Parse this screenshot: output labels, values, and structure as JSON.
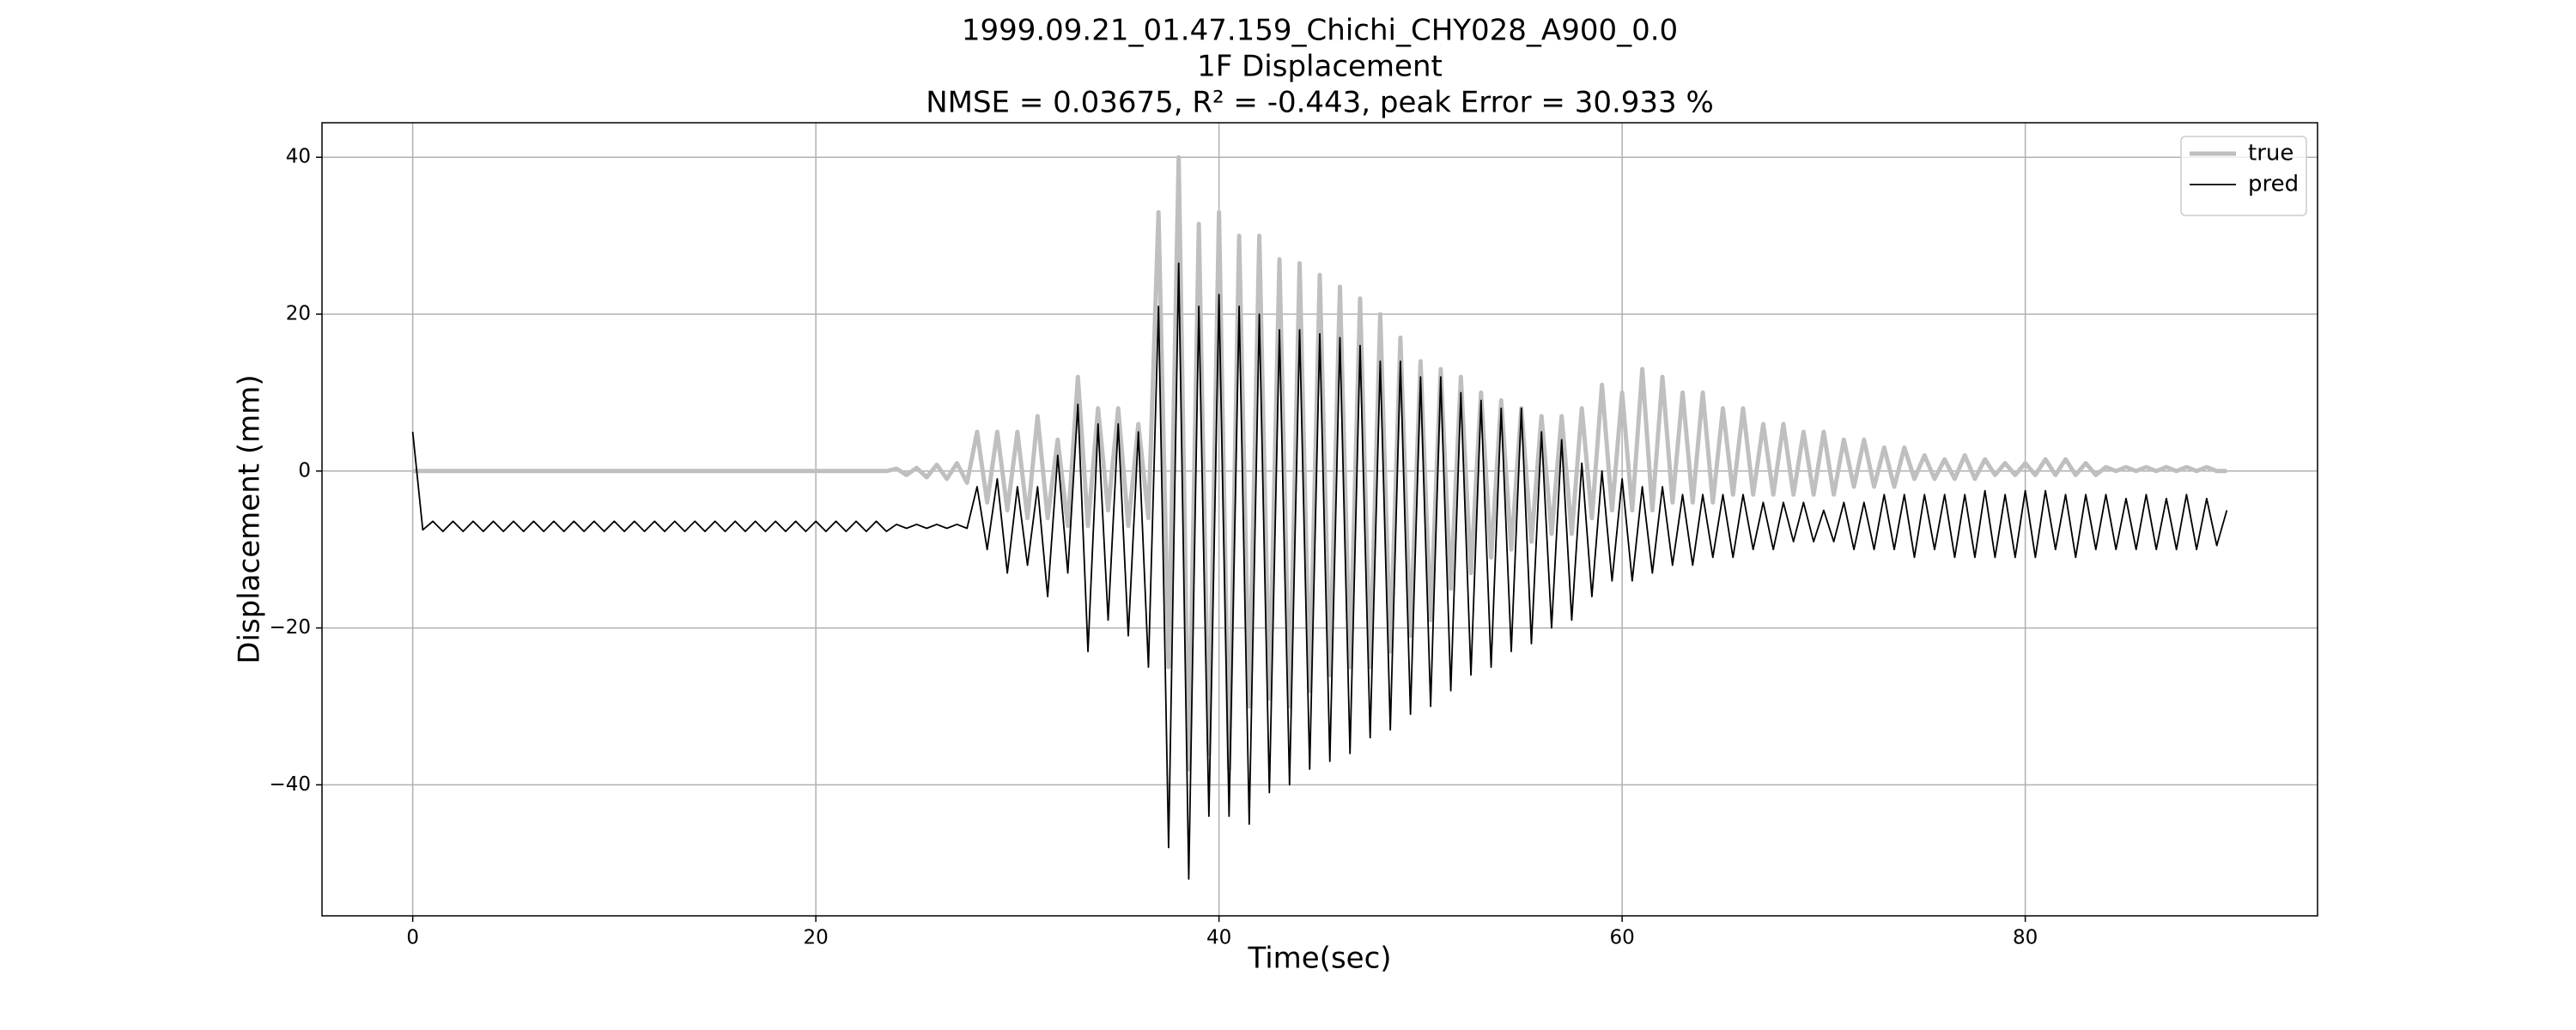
{
  "chart_data": {
    "type": "line",
    "title": [
      "1999.09.21_01.47.159_Chichi_CHY028_A900_0.0",
      "1F Displacement",
      "NMSE = 0.03675, R² = -0.443, peak Error = 30.933 %"
    ],
    "xlabel": "Time(sec)",
    "ylabel": "Displacement (mm)",
    "xlim": [
      -4.5,
      94.5
    ],
    "ylim": [
      -56.7,
      44.4
    ],
    "xticks": [
      0,
      20,
      40,
      60,
      80
    ],
    "yticks": [
      {
        "value": -40,
        "label": "−40"
      },
      {
        "value": -20,
        "label": "−20"
      },
      0,
      20,
      40
    ],
    "grid": true,
    "legend": "upper right",
    "x": [
      0,
      0.5,
      1,
      1.5,
      2,
      2.5,
      3,
      3.5,
      4,
      4.5,
      5,
      5.5,
      6,
      6.5,
      7,
      7.5,
      8,
      8.5,
      9,
      9.5,
      10,
      10.5,
      11,
      11.5,
      12,
      12.5,
      13,
      13.5,
      14,
      14.5,
      15,
      15.5,
      16,
      16.5,
      17,
      17.5,
      18,
      18.5,
      19,
      19.5,
      20,
      20.5,
      21,
      21.5,
      22,
      22.5,
      23,
      23.5,
      24,
      24.5,
      25,
      25.5,
      26,
      26.5,
      27,
      27.5,
      28,
      28.5,
      29,
      29.5,
      30,
      30.5,
      31,
      31.5,
      32,
      32.5,
      33,
      33.5,
      34,
      34.5,
      35,
      35.5,
      36,
      36.5,
      37,
      37.5,
      38,
      38.5,
      39,
      39.5,
      40,
      40.5,
      41,
      41.5,
      42,
      42.5,
      43,
      43.5,
      44,
      44.5,
      45,
      45.5,
      46,
      46.5,
      47,
      47.5,
      48,
      48.5,
      49,
      49.5,
      50,
      50.5,
      51,
      51.5,
      52,
      52.5,
      53,
      53.5,
      54,
      54.5,
      55,
      55.5,
      56,
      56.5,
      57,
      57.5,
      58,
      58.5,
      59,
      59.5,
      60,
      60.5,
      61,
      61.5,
      62,
      62.5,
      63,
      63.5,
      64,
      64.5,
      65,
      65.5,
      66,
      66.5,
      67,
      67.5,
      68,
      68.5,
      69,
      69.5,
      70,
      70.5,
      71,
      71.5,
      72,
      72.5,
      73,
      73.5,
      74,
      74.5,
      75,
      75.5,
      76,
      76.5,
      77,
      77.5,
      78,
      78.5,
      79,
      79.5,
      80,
      80.5,
      81,
      81.5,
      82,
      82.5,
      83,
      83.5,
      84,
      84.5,
      85,
      85.5,
      86,
      86.5,
      87,
      87.5,
      88,
      88.5,
      89,
      89.5,
      90
    ],
    "series": [
      {
        "name": "true",
        "color": "#bfbfbf",
        "width": 5,
        "values": [
          0,
          0,
          0,
          0,
          0,
          0,
          0,
          0,
          0,
          0,
          0,
          0,
          0,
          0,
          0,
          0,
          0,
          0,
          0,
          0,
          0,
          0,
          0,
          0,
          0,
          0,
          0,
          0,
          0,
          0,
          0,
          0,
          0,
          0,
          0,
          0,
          0,
          0,
          0,
          0,
          0,
          0,
          0,
          0,
          0,
          0,
          0,
          0,
          0.3,
          -0.5,
          0.4,
          -0.8,
          0.8,
          -1,
          1,
          -1.5,
          5,
          -4,
          5,
          -5,
          5,
          -6,
          7,
          -6,
          4,
          -7,
          12,
          -7,
          8,
          -5,
          8,
          -7,
          6,
          -6,
          33,
          -25,
          40,
          -38,
          31.5,
          -36,
          33,
          -38,
          30,
          -30,
          30,
          -29,
          27,
          -30,
          26.5,
          -28,
          25,
          -26,
          23.5,
          -25,
          22,
          -25,
          20,
          -23,
          17,
          -21,
          14,
          -19,
          13,
          -15,
          12,
          -13,
          10,
          -11,
          9,
          -10,
          8,
          -9,
          7,
          -8,
          7,
          -8,
          8,
          -6,
          11,
          -5,
          10,
          -5,
          13,
          -5,
          12,
          -4,
          10,
          -4,
          10,
          -4,
          8,
          -3,
          8,
          -3,
          6,
          -3,
          6,
          -3,
          5,
          -3,
          5,
          -3,
          4,
          -2,
          4,
          -2,
          3,
          -2,
          3,
          -1,
          2,
          -1,
          1.5,
          -1,
          2,
          -1,
          1.5,
          -0.5,
          1,
          -0.5,
          1,
          -0.5,
          1.5,
          -0.5,
          1.5,
          -0.5,
          1,
          -0.5,
          0.5,
          0,
          0.5,
          0,
          0.5,
          0,
          0.5,
          0,
          0.5,
          0,
          0.5,
          0,
          0
        ]
      },
      {
        "name": "pred",
        "color": "#000000",
        "width": 1.8,
        "values": [
          5,
          -7.5,
          -6.4,
          -7.7,
          -6.4,
          -7.7,
          -6.4,
          -7.7,
          -6.4,
          -7.7,
          -6.4,
          -7.7,
          -6.4,
          -7.7,
          -6.4,
          -7.7,
          -6.4,
          -7.7,
          -6.4,
          -7.7,
          -6.4,
          -7.7,
          -6.4,
          -7.7,
          -6.4,
          -7.7,
          -6.4,
          -7.7,
          -6.4,
          -7.7,
          -6.4,
          -7.7,
          -6.4,
          -7.7,
          -6.4,
          -7.7,
          -6.4,
          -7.7,
          -6.4,
          -7.7,
          -6.4,
          -7.7,
          -6.4,
          -7.7,
          -6.4,
          -7.7,
          -6.4,
          -7.7,
          -6.8,
          -7.3,
          -6.8,
          -7.3,
          -6.8,
          -7.3,
          -6.8,
          -7.3,
          -2,
          -10,
          -1,
          -13,
          -2,
          -12,
          -2,
          -16,
          2,
          -13,
          8.5,
          -23,
          6,
          -19,
          6,
          -21,
          5,
          -25,
          21,
          -48,
          26.5,
          -52,
          21,
          -44,
          22.5,
          -44,
          21,
          -45,
          20,
          -41,
          18,
          -40,
          18,
          -38,
          17.5,
          -37,
          17,
          -36,
          16,
          -34,
          14,
          -33,
          14,
          -31,
          12,
          -30,
          12,
          -28,
          10,
          -26,
          9,
          -25,
          8,
          -23,
          8,
          -22,
          5,
          -20,
          4,
          -19,
          1,
          -16,
          0,
          -14,
          -1,
          -14,
          -2,
          -13,
          -2,
          -12,
          -3,
          -12,
          -3,
          -11,
          -3,
          -11,
          -3,
          -10,
          -4,
          -10,
          -4,
          -9,
          -4,
          -9,
          -5,
          -9,
          -4,
          -10,
          -4,
          -10,
          -3,
          -10,
          -3,
          -11,
          -3,
          -10,
          -3,
          -11,
          -3,
          -11,
          -2.5,
          -11,
          -3,
          -11,
          -2.5,
          -11,
          -2.5,
          -10,
          -3,
          -11,
          -3,
          -10,
          -3,
          -10,
          -3.5,
          -10,
          -3,
          -10,
          -3.5,
          -10,
          -3,
          -10,
          -3.5,
          -9.5,
          -5
        ]
      }
    ]
  }
}
